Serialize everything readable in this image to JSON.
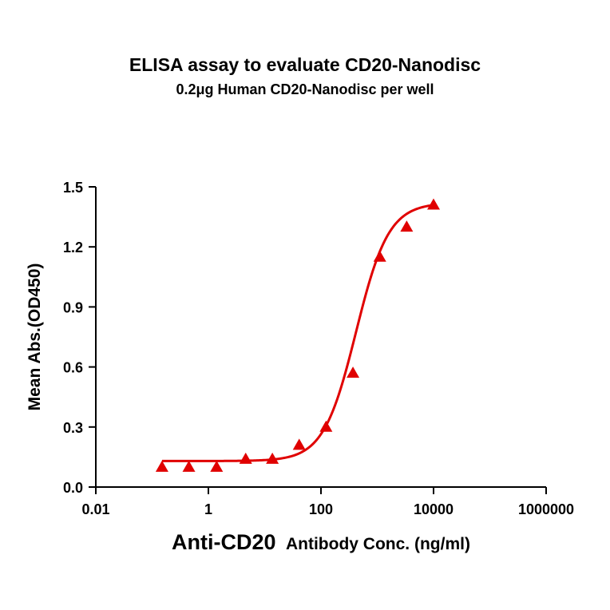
{
  "chart_data": {
    "type": "scatter",
    "title": "ELISA assay to evaluate CD20-Nanodisc",
    "subtitle": "0.2μg Human CD20-Nanodisc per well",
    "xlabel_main": "Anti-CD20",
    "xlabel_rest": "Antibody Conc. (ng/ml)",
    "ylabel": "Mean Abs.(OD450)",
    "x_scale": "log",
    "xlim": [
      0.01,
      1000000
    ],
    "ylim": [
      0.0,
      1.5
    ],
    "x_ticks": [
      0.01,
      1,
      100,
      10000,
      1000000
    ],
    "x_tick_labels": [
      "0.01",
      "1",
      "100",
      "10000",
      "1000000"
    ],
    "y_ticks": [
      0.0,
      0.3,
      0.6,
      0.9,
      1.2,
      1.5
    ],
    "y_tick_labels": [
      "0.0",
      "0.3",
      "0.6",
      "0.9",
      "1.2",
      "1.5"
    ],
    "color": "#e00000",
    "marker": "triangle",
    "x": [
      0.15,
      0.45,
      1.4,
      4.6,
      13.7,
      41,
      123,
      370,
      1111,
      3333,
      10000
    ],
    "y": [
      0.1,
      0.1,
      0.1,
      0.14,
      0.14,
      0.21,
      0.3,
      0.57,
      1.15,
      1.3,
      1.41
    ],
    "fit": {
      "model": "4PL",
      "bottom": 0.13,
      "top": 1.42,
      "ec50": 420,
      "hill": 1.5,
      "x_range": [
        0.15,
        10000
      ]
    }
  }
}
